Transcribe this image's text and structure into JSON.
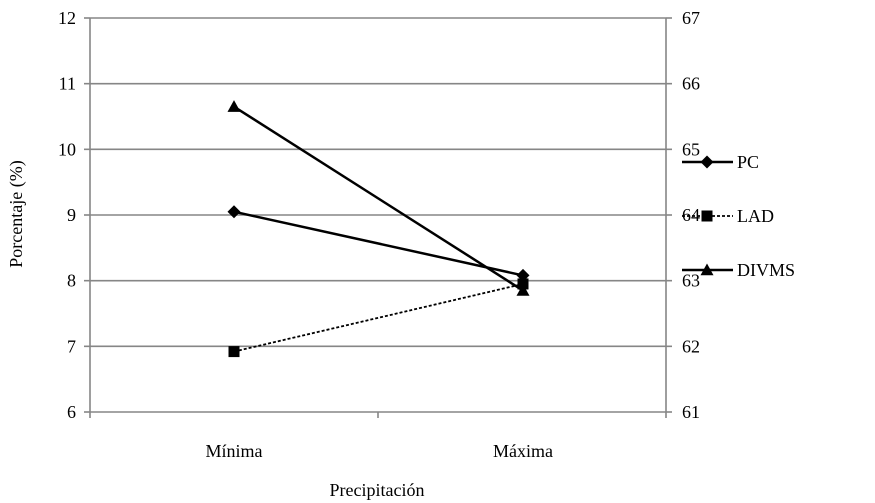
{
  "chart_data": {
    "type": "line",
    "xlabel": "Precipitación",
    "ylabel": "Porcentaje (%)",
    "categories": [
      "Mínima",
      "Máxima"
    ],
    "ylim": [
      6,
      12
    ],
    "y_ticks": [
      "6",
      "7",
      "8",
      "9",
      "10",
      "11",
      "12"
    ],
    "y2lim": [
      61,
      67
    ],
    "y2_ticks": [
      "61",
      "62",
      "63",
      "64",
      "65",
      "66",
      "67"
    ],
    "grid": true,
    "legend_position": "right",
    "series": [
      {
        "name": "PC",
        "axis": "left",
        "marker": "diamond",
        "line_style": "solid",
        "values": [
          9.05,
          8.08
        ]
      },
      {
        "name": "LAD",
        "axis": "left",
        "marker": "square",
        "line_style": "dashed",
        "values": [
          6.92,
          7.95
        ]
      },
      {
        "name": "DIVMS",
        "axis": "right",
        "marker": "triangle",
        "line_style": "solid",
        "values": [
          65.65,
          62.85
        ]
      }
    ],
    "colors": {
      "line": "#000000",
      "grid": "#868686",
      "axis": "#868686"
    }
  }
}
